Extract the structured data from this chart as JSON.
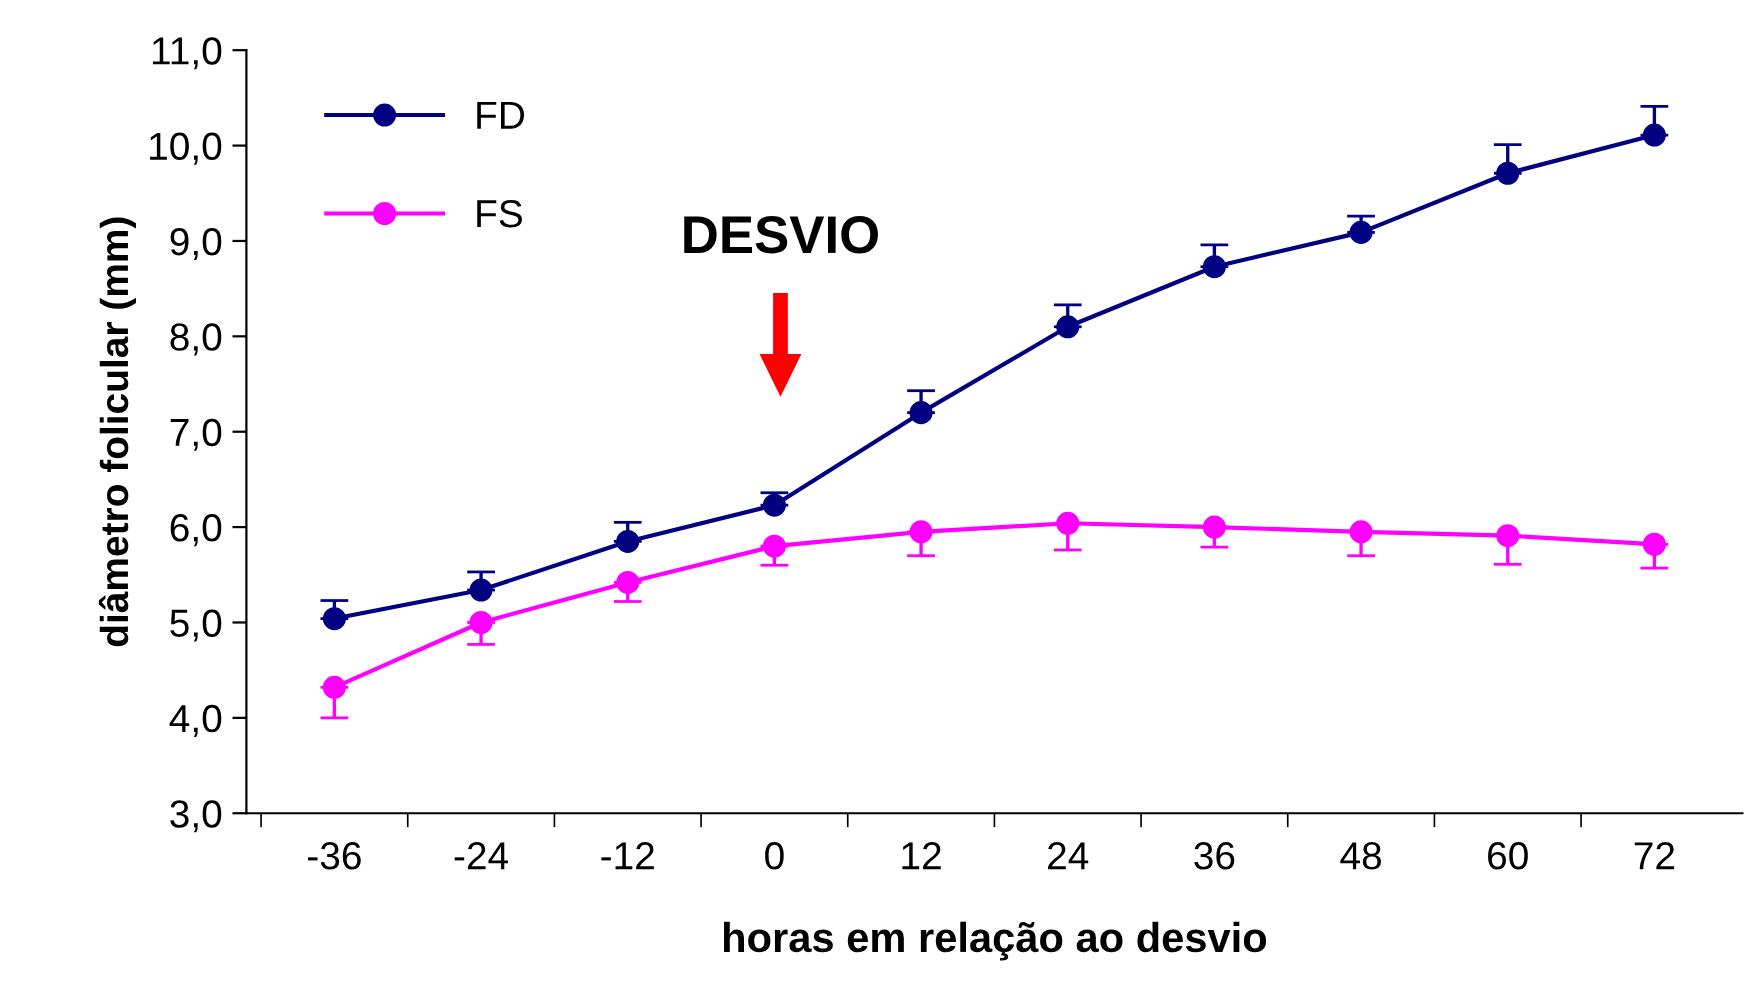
{
  "chart_data": {
    "type": "line",
    "xlabel": "horas em relação ao desvio",
    "ylabel": "diâmetro folicular (mm)",
    "categories": [
      "-36",
      "-24",
      "-12",
      "0",
      "12",
      "24",
      "36",
      "48",
      "60",
      "72"
    ],
    "series": [
      {
        "name": "FD",
        "color": "#000080",
        "marker": "circle",
        "values": [
          5.04,
          5.34,
          5.85,
          6.23,
          7.2,
          8.1,
          8.73,
          9.09,
          9.71,
          10.11
        ],
        "errors": [
          [
            5.04,
            5.23
          ],
          [
            5.34,
            5.53
          ],
          [
            5.85,
            6.05
          ],
          [
            6.23,
            6.36
          ],
          [
            7.2,
            7.43
          ],
          [
            8.1,
            8.33
          ],
          [
            8.73,
            8.96
          ],
          [
            9.09,
            9.26
          ],
          [
            9.71,
            10.01
          ],
          [
            10.11,
            10.41
          ]
        ]
      },
      {
        "name": "FS",
        "color": "#ff00ff",
        "marker": "circle",
        "values": [
          4.32,
          5.0,
          5.42,
          5.8,
          5.95,
          6.04,
          6.0,
          5.95,
          5.91,
          5.82
        ],
        "errors": [
          [
            4.0,
            4.32
          ],
          [
            4.77,
            5.0
          ],
          [
            5.22,
            5.42
          ],
          [
            5.6,
            5.8
          ],
          [
            5.7,
            5.95
          ],
          [
            5.76,
            6.04
          ],
          [
            5.79,
            6.0
          ],
          [
            5.7,
            5.95
          ],
          [
            5.61,
            5.91
          ],
          [
            5.57,
            5.82
          ]
        ]
      }
    ],
    "ylim": [
      3,
      11
    ],
    "yticks": [
      {
        "value": 3,
        "label": "3,0"
      },
      {
        "value": 4,
        "label": "4,0"
      },
      {
        "value": 5,
        "label": "5,0"
      },
      {
        "value": 6,
        "label": "6,0"
      },
      {
        "value": 7,
        "label": "7,0"
      },
      {
        "value": 8,
        "label": "8,0"
      },
      {
        "value": 9,
        "label": "9,0"
      },
      {
        "value": 10,
        "label": "10,0"
      },
      {
        "value": 11,
        "label": "11,0"
      }
    ],
    "annotations": [
      "DESVIO"
    ],
    "grid": false,
    "legend": "top left",
    "line_style": "solid"
  }
}
